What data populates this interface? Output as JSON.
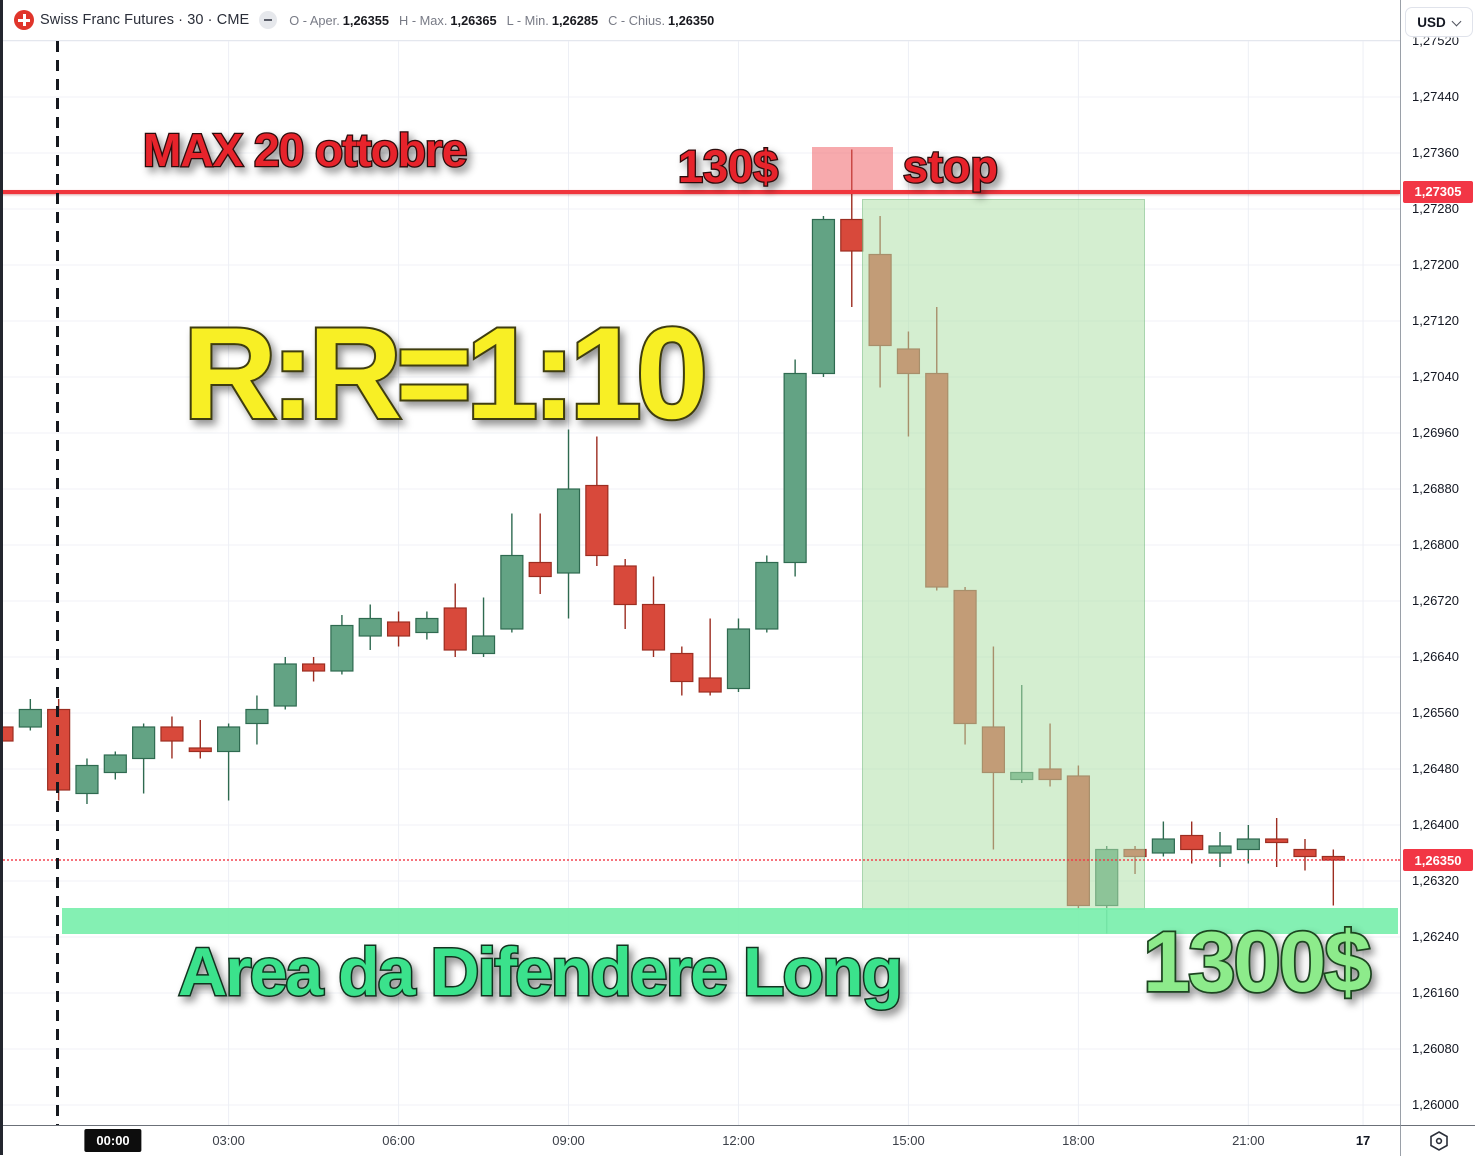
{
  "header": {
    "symbol_title": "Swiss Franc Futures · 30 · CME",
    "ohlc": [
      {
        "label": "O - Aper.",
        "value": "1,26355"
      },
      {
        "label": "H - Max.",
        "value": "1,26365"
      },
      {
        "label": "L - Min.",
        "value": "1,26285"
      },
      {
        "label": "C - Chius.",
        "value": "1,26350"
      }
    ]
  },
  "price_axis": {
    "currency": "USD",
    "labels": [
      "1,27520",
      "1,27440",
      "1,27360",
      "1,27280",
      "1,27200",
      "1,27120",
      "1,27040",
      "1,26960",
      "1,26880",
      "1,26800",
      "1,26720",
      "1,26640",
      "1,26560",
      "1,26480",
      "1,26400",
      "1,26320",
      "1,26240",
      "1,26160",
      "1,26080",
      "1,26000"
    ],
    "badges": [
      {
        "text": "1,27305",
        "value": 1.27305
      },
      {
        "text": "1,26350",
        "value": 1.2635
      }
    ]
  },
  "time_axis": {
    "session_badge": {
      "text": "00:00",
      "i": 3.92
    },
    "labels": [
      {
        "text": "03:00",
        "i": 8
      },
      {
        "text": "06:00",
        "i": 14
      },
      {
        "text": "09:00",
        "i": 20
      },
      {
        "text": "12:00",
        "i": 26
      },
      {
        "text": "15:00",
        "i": 32
      },
      {
        "text": "18:00",
        "i": 38
      },
      {
        "text": "21:00",
        "i": 44
      },
      {
        "text": "17",
        "i": 48.05,
        "strong": true
      }
    ]
  },
  "annotations": {
    "max_label": "MAX 20 ottobre",
    "risk_label": "130$",
    "stop_label": "stop",
    "rr_label": "R:R=1:10",
    "area_label": "Area da Difendere Long",
    "reward_label": "1300$",
    "max_line_price": 1.27305,
    "current_price": 1.2635,
    "stop_zone": {
      "from_i": 28.6,
      "to_i": 31.45,
      "price_top": 1.27368,
      "price_bottom": 1.27307
    },
    "profit_zone": {
      "from_i": 30.36,
      "to_i": 40.28,
      "price_top": 1.27295,
      "price_bottom": 1.26282
    },
    "defend_band": {
      "x_from": 62,
      "x_to": 1398,
      "price_top": 1.26281,
      "price_bottom": 1.26244
    }
  },
  "colors": {
    "up": "#63a384",
    "up_border": "#2e6a50",
    "down": "#d8493b",
    "down_border": "#9c2d21",
    "grid_h": "#f0f2f7",
    "grid_v": "#edeff5",
    "max_line": "#f0353c",
    "badge": "#f23645",
    "overlay_green": "rgba(176,224,170,0.55)",
    "stop_pink": "rgba(239,85,92,0.5)",
    "band_green": "#79efad",
    "annotation_red": "#e7232b",
    "annotation_yellow": "#f8ef25",
    "annotation_mint": "#3be28c",
    "annotation_light_green": "#8deb8b"
  },
  "chart_data": {
    "type": "candlestick",
    "symbol": "Swiss Franc Futures",
    "interval_minutes": 30,
    "exchange": "CME",
    "ylabel": "USD",
    "ylim": [
      1.26,
      1.2756
    ],
    "grid": true,
    "candles": [
      [
        "23:00",
        1.2654,
        1.26545,
        1.265,
        1.2652
      ],
      [
        "23:30",
        1.2654,
        1.2658,
        1.26535,
        1.26565
      ],
      [
        "00:00",
        1.26565,
        1.2658,
        1.26435,
        1.2645
      ],
      [
        "00:30",
        1.26445,
        1.26495,
        1.2643,
        1.26485
      ],
      [
        "01:00",
        1.26475,
        1.26505,
        1.26465,
        1.265
      ],
      [
        "01:30",
        1.26495,
        1.26545,
        1.26445,
        1.2654
      ],
      [
        "02:00",
        1.2654,
        1.26555,
        1.26495,
        1.2652
      ],
      [
        "02:30",
        1.2651,
        1.2655,
        1.26495,
        1.26505
      ],
      [
        "03:00",
        1.26505,
        1.26545,
        1.26435,
        1.2654
      ],
      [
        "03:30",
        1.26545,
        1.26585,
        1.26515,
        1.26565
      ],
      [
        "04:00",
        1.2657,
        1.2664,
        1.26565,
        1.2663
      ],
      [
        "04:30",
        1.2663,
        1.2664,
        1.26605,
        1.2662
      ],
      [
        "05:00",
        1.2662,
        1.267,
        1.26615,
        1.26685
      ],
      [
        "05:30",
        1.2667,
        1.26715,
        1.2665,
        1.26695
      ],
      [
        "06:00",
        1.2669,
        1.26705,
        1.26655,
        1.2667
      ],
      [
        "06:30",
        1.26675,
        1.26705,
        1.26665,
        1.26695
      ],
      [
        "07:00",
        1.2671,
        1.26745,
        1.2664,
        1.2665
      ],
      [
        "07:30",
        1.26645,
        1.26725,
        1.2664,
        1.2667
      ],
      [
        "08:00",
        1.2668,
        1.26845,
        1.26675,
        1.26785
      ],
      [
        "08:30",
        1.26775,
        1.26845,
        1.2673,
        1.26755
      ],
      [
        "09:00",
        1.2676,
        1.26965,
        1.26695,
        1.2688
      ],
      [
        "09:30",
        1.26885,
        1.26955,
        1.2677,
        1.26785
      ],
      [
        "10:00",
        1.2677,
        1.2678,
        1.2668,
        1.26715
      ],
      [
        "10:30",
        1.26715,
        1.26755,
        1.2664,
        1.2665
      ],
      [
        "11:00",
        1.26645,
        1.26655,
        1.26585,
        1.26605
      ],
      [
        "11:30",
        1.2661,
        1.26695,
        1.26585,
        1.2659
      ],
      [
        "12:00",
        1.26595,
        1.26695,
        1.2659,
        1.2668
      ],
      [
        "12:30",
        1.2668,
        1.26785,
        1.26675,
        1.26775
      ],
      [
        "13:00",
        1.26775,
        1.27065,
        1.26755,
        1.27045
      ],
      [
        "13:30",
        1.27045,
        1.2727,
        1.2704,
        1.27265
      ],
      [
        "14:00",
        1.27265,
        1.27365,
        1.2714,
        1.2722
      ],
      [
        "14:30",
        1.27215,
        1.2727,
        1.27025,
        1.27085
      ],
      [
        "15:00",
        1.2708,
        1.27105,
        1.26955,
        1.27045
      ],
      [
        "15:30",
        1.27045,
        1.2714,
        1.26735,
        1.2674
      ],
      [
        "16:00",
        1.26735,
        1.2674,
        1.26515,
        1.26545
      ],
      [
        "16:30",
        1.2654,
        1.26655,
        1.26365,
        1.26475
      ],
      [
        "17:00",
        1.26465,
        1.266,
        1.2646,
        1.26475
      ],
      [
        "17:30",
        1.2648,
        1.26545,
        1.26455,
        1.26465
      ],
      [
        "18:00",
        1.2647,
        1.26485,
        1.2628,
        1.26285
      ],
      [
        "18:30",
        1.26285,
        1.2637,
        1.26245,
        1.26365
      ],
      [
        "19:00",
        1.26365,
        1.2637,
        1.2633,
        1.26355
      ],
      [
        "19:30",
        1.2636,
        1.26405,
        1.26355,
        1.2638
      ],
      [
        "20:00",
        1.26385,
        1.26405,
        1.26345,
        1.26365
      ],
      [
        "20:30",
        1.2636,
        1.2639,
        1.2634,
        1.2637
      ],
      [
        "21:00",
        1.26365,
        1.264,
        1.26345,
        1.2638
      ],
      [
        "21:30",
        1.2638,
        1.2641,
        1.2634,
        1.26375
      ],
      [
        "22:00",
        1.26365,
        1.2638,
        1.26335,
        1.26355
      ],
      [
        "22:30",
        1.26355,
        1.26365,
        1.26285,
        1.2635
      ]
    ]
  }
}
